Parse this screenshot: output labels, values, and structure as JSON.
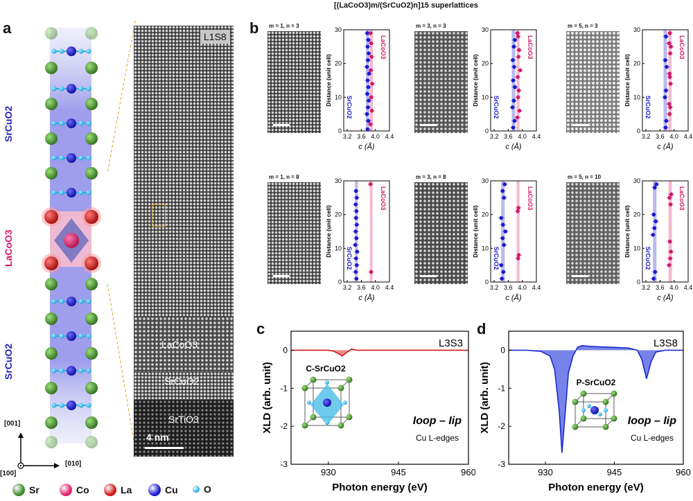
{
  "figure_title": "[(LaCoO3)m/(SrCuO2)n]15 superlattices",
  "panels": {
    "a": {
      "letter": "a",
      "labels": {
        "top_layer": "SrCuO2",
        "middle_layer": "LaCoO3",
        "bottom_layer": "SrCuO2"
      },
      "stem_labels": {
        "sample": "L1S8",
        "layer1": "LaCoO3",
        "layer2": "SrCuO2",
        "layer3": "SrTiO3"
      },
      "scale_bar": "4 nm",
      "axes": {
        "vertical": "[001]",
        "horizontal": "[010]",
        "out": "[100]"
      },
      "legend": [
        {
          "symbol": "Sr",
          "color": "#3f8a2c"
        },
        {
          "symbol": "Co",
          "color": "#e0206e"
        },
        {
          "symbol": "La",
          "color": "#d01818"
        },
        {
          "symbol": "Cu",
          "color": "#1a1acc"
        },
        {
          "symbol": "O",
          "color": "#2ab0e8"
        }
      ]
    },
    "b": {
      "letter": "b"
    },
    "c": {
      "letter": "c"
    },
    "d": {
      "letter": "d"
    }
  },
  "chart_data": [
    {
      "type": "scatter",
      "id": "b1",
      "label": "m = 1, n = 3",
      "xlabel": "c (Å)",
      "ylabel": "Distance (unit cell)",
      "xlim": [
        3.1,
        4.4
      ],
      "ylim": [
        0,
        30
      ],
      "xticks": [
        3.2,
        3.6,
        4.0,
        4.4
      ],
      "yticks": [
        0,
        10,
        20,
        30
      ],
      "legend": [
        "SrCuO2",
        "LaCoO3"
      ],
      "blue_band": [
        3.73,
        3.82
      ],
      "pink_band": [
        3.84,
        3.93
      ],
      "series": [
        {
          "name": "SrCuO2",
          "values": [
            [
              3.78,
              0.5
            ],
            [
              3.8,
              3
            ],
            [
              3.76,
              5
            ],
            [
              3.79,
              7
            ],
            [
              3.81,
              9
            ],
            [
              3.77,
              11
            ],
            [
              3.8,
              13
            ],
            [
              3.78,
              15
            ],
            [
              3.82,
              17
            ],
            [
              3.76,
              19
            ],
            [
              3.79,
              21
            ],
            [
              3.81,
              23
            ],
            [
              3.78,
              25
            ],
            [
              3.8,
              27
            ],
            [
              3.77,
              29
            ]
          ]
        },
        {
          "name": "LaCoO3",
          "values": [
            [
              3.86,
              2
            ],
            [
              3.9,
              6
            ],
            [
              3.88,
              10
            ],
            [
              3.91,
              14
            ],
            [
              3.87,
              18
            ],
            [
              3.89,
              22
            ],
            [
              3.88,
              26
            ],
            [
              3.86,
              29
            ]
          ]
        }
      ]
    },
    {
      "type": "scatter",
      "id": "b2",
      "label": "m = 3, n = 3",
      "xlabel": "c (Å)",
      "ylabel": "Distance (unit cell)",
      "xlim": [
        3.1,
        4.4
      ],
      "ylim": [
        0,
        30
      ],
      "xticks": [
        3.2,
        3.6,
        4.0,
        4.4
      ],
      "yticks": [
        0,
        10,
        20,
        30
      ],
      "legend": [
        "SrCuO2",
        "LaCoO3"
      ],
      "blue_band": [
        3.7,
        3.8
      ],
      "pink_band": [
        3.84,
        3.92
      ],
      "series": [
        {
          "name": "SrCuO2",
          "values": [
            [
              3.74,
              1
            ],
            [
              3.78,
              3
            ],
            [
              3.72,
              7
            ],
            [
              3.76,
              9
            ],
            [
              3.79,
              13
            ],
            [
              3.74,
              15
            ],
            [
              3.77,
              19
            ],
            [
              3.73,
              21
            ],
            [
              3.76,
              25
            ],
            [
              3.79,
              27
            ]
          ]
        },
        {
          "name": "LaCoO3",
          "values": [
            [
              3.86,
              4
            ],
            [
              3.92,
              6
            ],
            [
              3.88,
              10
            ],
            [
              3.9,
              12
            ],
            [
              3.87,
              16
            ],
            [
              3.94,
              18
            ],
            [
              3.89,
              22
            ],
            [
              3.91,
              24
            ],
            [
              3.88,
              28
            ],
            [
              3.86,
              29
            ]
          ]
        }
      ]
    },
    {
      "type": "scatter",
      "id": "b3",
      "label": "m = 5, n = 3",
      "xlabel": "c (Å)",
      "ylabel": "Distance (unit cell)",
      "xlim": [
        3.1,
        4.4
      ],
      "ylim": [
        0,
        30
      ],
      "xticks": [
        3.2,
        3.6,
        4.0,
        4.4
      ],
      "yticks": [
        0,
        10,
        20,
        30
      ],
      "legend": [
        "SrCuO2",
        "LaCoO3"
      ],
      "blue_band": [
        3.7,
        3.8
      ],
      "pink_band": [
        3.84,
        3.93
      ],
      "series": [
        {
          "name": "SrCuO2",
          "values": [
            [
              3.76,
              1
            ],
            [
              3.78,
              3
            ],
            [
              3.74,
              10
            ],
            [
              3.77,
              12
            ],
            [
              3.79,
              19
            ],
            [
              3.75,
              21
            ],
            [
              3.77,
              28
            ]
          ]
        },
        {
          "name": "LaCoO3",
          "values": [
            [
              3.87,
              5
            ],
            [
              3.89,
              7
            ],
            [
              3.86,
              8
            ],
            [
              3.9,
              14
            ],
            [
              3.88,
              16
            ],
            [
              3.87,
              17
            ],
            [
              3.89,
              23
            ],
            [
              3.91,
              25
            ],
            [
              3.86,
              26
            ],
            [
              3.88,
              29
            ]
          ]
        }
      ]
    },
    {
      "type": "scatter",
      "id": "b4",
      "label": "m = 1, n = 8",
      "xlabel": "c (Å)",
      "ylabel": "Distance (unit cell)",
      "xlim": [
        3.1,
        4.4
      ],
      "ylim": [
        0,
        30
      ],
      "xticks": [
        3.2,
        3.6,
        4.0,
        4.4
      ],
      "yticks": [
        0,
        10,
        20,
        30
      ],
      "legend": [
        "SrCuO2",
        "LaCoO3"
      ],
      "blue_band": [
        3.42,
        3.5
      ],
      "pink_band": [
        3.84,
        3.92
      ],
      "series": [
        {
          "name": "SrCuO2",
          "values": [
            [
              3.46,
              1
            ],
            [
              3.44,
              3
            ],
            [
              3.47,
              5
            ],
            [
              3.45,
              7
            ],
            [
              3.48,
              9
            ],
            [
              3.43,
              11
            ],
            [
              3.46,
              13
            ],
            [
              3.44,
              15
            ],
            [
              3.47,
              17
            ],
            [
              3.45,
              19
            ],
            [
              3.46,
              21
            ],
            [
              3.44,
              23
            ],
            [
              3.47,
              25
            ],
            [
              3.45,
              27
            ]
          ]
        },
        {
          "name": "LaCoO3",
          "values": [
            [
              3.88,
              3
            ],
            [
              3.86,
              29
            ]
          ]
        }
      ]
    },
    {
      "type": "scatter",
      "id": "b5",
      "label": "m = 3, n = 8",
      "xlabel": "c (Å)",
      "ylabel": "Distance (unit cell)",
      "xlim": [
        3.1,
        4.4
      ],
      "ylim": [
        0,
        30
      ],
      "xticks": [
        3.2,
        3.6,
        4.0,
        4.4
      ],
      "yticks": [
        0,
        10,
        20,
        30
      ],
      "legend": [
        "SrCuO2",
        "LaCoO3"
      ],
      "blue_band": [
        3.4,
        3.5
      ],
      "pink_band": [
        3.84,
        3.92
      ],
      "series": [
        {
          "name": "SrCuO2",
          "values": [
            [
              3.42,
              1
            ],
            [
              3.46,
              3
            ],
            [
              3.4,
              5
            ],
            [
              3.48,
              11
            ],
            [
              3.44,
              13
            ],
            [
              3.52,
              15
            ],
            [
              3.45,
              17
            ],
            [
              3.4,
              19
            ],
            [
              3.48,
              25
            ],
            [
              3.44,
              27
            ],
            [
              3.5,
              29
            ]
          ]
        },
        {
          "name": "LaCoO3",
          "values": [
            [
              3.88,
              7
            ],
            [
              3.9,
              8
            ],
            [
              3.87,
              21
            ],
            [
              3.89,
              22
            ]
          ]
        }
      ]
    },
    {
      "type": "scatter",
      "id": "b6",
      "label": "m = 5, n = 10",
      "xlabel": "c (Å)",
      "ylabel": "Distance (unit cell)",
      "xlim": [
        3.1,
        4.4
      ],
      "ylim": [
        0,
        30
      ],
      "xticks": [
        3.2,
        3.6,
        4.0,
        4.4
      ],
      "yticks": [
        0,
        10,
        20,
        30
      ],
      "legend": [
        "SrCuO2",
        "LaCoO3"
      ],
      "blue_band": [
        3.4,
        3.5
      ],
      "pink_band": [
        3.84,
        3.94
      ],
      "series": [
        {
          "name": "SrCuO2",
          "values": [
            [
              3.42,
              1
            ],
            [
              3.46,
              3
            ],
            [
              3.4,
              14
            ],
            [
              3.44,
              16
            ],
            [
              3.48,
              18
            ],
            [
              3.42,
              20
            ],
            [
              3.45,
              28
            ],
            [
              3.5,
              29
            ]
          ]
        },
        {
          "name": "LaCoO3",
          "values": [
            [
              3.86,
              5
            ],
            [
              3.89,
              7
            ],
            [
              3.91,
              9
            ],
            [
              3.88,
              12
            ],
            [
              3.9,
              23
            ],
            [
              3.87,
              25
            ],
            [
              3.92,
              26
            ]
          ]
        }
      ]
    },
    {
      "type": "line",
      "id": "c",
      "title": "L3S3",
      "xlabel": "Photon energy (eV)",
      "ylabel": "XLD (arb. unit)",
      "xlim": [
        922,
        960
      ],
      "ylim": [
        -3,
        0.5
      ],
      "xticks": [
        930,
        945,
        960
      ],
      "yticks": [
        0,
        -1,
        -2,
        -3
      ],
      "annotation": "Ioop – Iip",
      "edge_label": "Cu L-edges",
      "inset_label": "C-SrCuO2",
      "series": [
        {
          "name": "XLD",
          "x": [
            922,
            926,
            930,
            931,
            932,
            933,
            934,
            935,
            936,
            940,
            945,
            950,
            955,
            960
          ],
          "values": [
            0,
            0,
            0,
            -0.02,
            -0.08,
            -0.15,
            -0.05,
            0.03,
            0,
            0,
            0,
            0,
            0,
            0
          ]
        }
      ]
    },
    {
      "type": "area",
      "id": "d",
      "title": "L3S8",
      "xlabel": "Photon energy (eV)",
      "ylabel": "XLD (arb. unit)",
      "xlim": [
        922,
        960
      ],
      "ylim": [
        -3,
        0.5
      ],
      "xticks": [
        930,
        945,
        960
      ],
      "yticks": [
        0,
        -1,
        -2,
        -3
      ],
      "annotation": "Ioop – Iip",
      "edge_label": "Cu L-edges",
      "inset_label": "P-SrCuO2",
      "series": [
        {
          "name": "XLD",
          "x": [
            922,
            926,
            929,
            931,
            932,
            933,
            933.6,
            934.2,
            935,
            936,
            937,
            938,
            940,
            944,
            948,
            950,
            951,
            952,
            953,
            954,
            956,
            960
          ],
          "values": [
            0,
            0,
            -0.03,
            -0.15,
            -0.5,
            -1.6,
            -2.7,
            -1.8,
            -0.6,
            -0.15,
            0.08,
            0.12,
            0.1,
            0.08,
            0.06,
            0,
            -0.25,
            -0.75,
            -0.3,
            -0.05,
            0,
            0
          ]
        }
      ]
    }
  ]
}
